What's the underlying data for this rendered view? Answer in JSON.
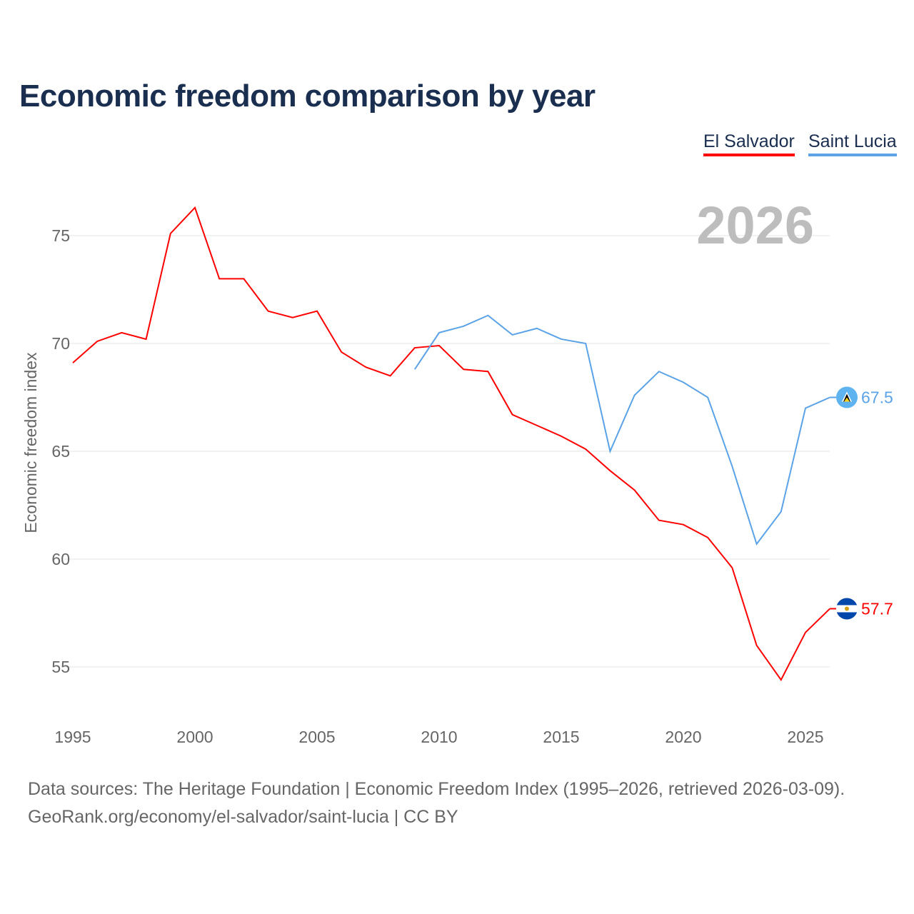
{
  "chart_data": {
    "type": "line",
    "title": "Economic freedom comparison by year",
    "ylabel": "Economic freedom index",
    "xlabel": "",
    "xlim": [
      1995,
      2026
    ],
    "ylim": [
      53,
      78
    ],
    "yticks": [
      55,
      60,
      65,
      70,
      75
    ],
    "xticks": [
      1995,
      2000,
      2005,
      2010,
      2015,
      2020,
      2025
    ],
    "grid": true,
    "legend_position": "top-right",
    "year_watermark": "2026",
    "series": [
      {
        "name": "El Salvador",
        "color": "#ff0000",
        "end_label": "57.7",
        "x": [
          1995,
          1996,
          1997,
          1998,
          1999,
          2000,
          2001,
          2002,
          2003,
          2004,
          2005,
          2006,
          2007,
          2008,
          2009,
          2010,
          2011,
          2012,
          2013,
          2014,
          2015,
          2016,
          2017,
          2018,
          2019,
          2020,
          2021,
          2022,
          2023,
          2024,
          2025,
          2026
        ],
        "values": [
          69.1,
          70.1,
          70.5,
          70.2,
          75.1,
          76.3,
          73.0,
          73.0,
          71.5,
          71.2,
          71.5,
          69.6,
          68.9,
          68.5,
          69.8,
          69.9,
          68.8,
          68.7,
          66.7,
          66.2,
          65.7,
          65.1,
          64.1,
          63.2,
          61.8,
          61.6,
          61.0,
          59.6,
          56.0,
          54.4,
          56.6,
          57.7
        ]
      },
      {
        "name": "Saint Lucia",
        "color": "#5ba3e6",
        "end_label": "67.5",
        "x": [
          2009,
          2010,
          2011,
          2012,
          2013,
          2014,
          2015,
          2016,
          2017,
          2018,
          2019,
          2020,
          2021,
          2022,
          2023,
          2024,
          2025,
          2026
        ],
        "values": [
          68.8,
          70.5,
          70.8,
          71.3,
          70.4,
          70.7,
          70.2,
          70.0,
          65.0,
          67.6,
          68.7,
          68.2,
          67.5,
          64.3,
          60.7,
          62.2,
          67.0,
          67.5
        ]
      }
    ]
  },
  "footer": {
    "line1": "Data sources: The Heritage Foundation | Economic Freedom Index (1995–2026, retrieved 2026-03-09).",
    "line2": "GeoRank.org/economy/el-salvador/saint-lucia | CC BY"
  }
}
